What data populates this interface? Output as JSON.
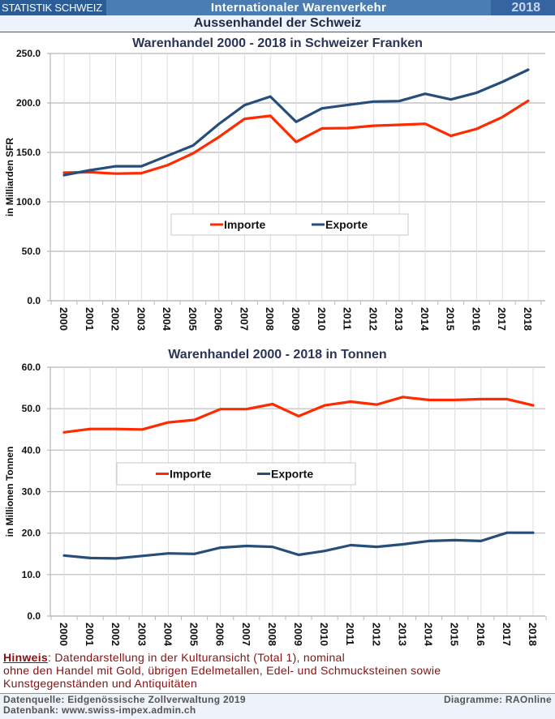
{
  "header": {
    "brand": "STATISTIK SCHWEIZ",
    "title": "Internationaler Warenverkehr",
    "year": "2018",
    "subtitle": "Aussenhandel der Schweiz"
  },
  "colors": {
    "importe": "#ff2a00",
    "exporte": "#274e7a",
    "header_bg": "#4a7db3",
    "brand_bg": "#2c5c96",
    "note_text": "#8a1010"
  },
  "chart_data": [
    {
      "type": "line",
      "title": "Warenhandel 2000 - 2018 in Schweizer Franken",
      "xlabel": "",
      "ylabel": "in Milliarden SFR",
      "ylim": [
        0,
        250
      ],
      "yticks": [
        "0.0",
        "50.0",
        "100.0",
        "150.0",
        "200.0",
        "250.0"
      ],
      "ytick_values": [
        0,
        50,
        100,
        150,
        200,
        250
      ],
      "grid": true,
      "legend_position": "center",
      "categories": [
        "2000",
        "2001",
        "2002",
        "2003",
        "2004",
        "2005",
        "2006",
        "2007",
        "2008",
        "2009",
        "2010",
        "2011",
        "2012",
        "2013",
        "2014",
        "2015",
        "2016",
        "2017",
        "2018"
      ],
      "series": [
        {
          "name": "Importe",
          "color": "#ff2a00",
          "values": [
            129.5,
            130.0,
            128.5,
            129.0,
            137.0,
            149.0,
            165.5,
            183.9,
            187.0,
            160.6,
            174.3,
            174.6,
            177.0,
            177.9,
            178.9,
            166.7,
            173.8,
            185.7,
            202.2
          ]
        },
        {
          "name": "Exporte",
          "color": "#274e7a",
          "values": [
            127.0,
            132.0,
            136.0,
            136.0,
            146.5,
            157.0,
            178.7,
            197.8,
            206.5,
            180.9,
            194.5,
            198.0,
            201.4,
            201.9,
            209.3,
            203.5,
            210.3,
            221.3,
            233.6
          ]
        }
      ]
    },
    {
      "type": "line",
      "title": "Warenhandel 2000 - 2018 in Tonnen",
      "xlabel": "",
      "ylabel": "in Millionen Tonnen",
      "ylim": [
        0,
        60
      ],
      "yticks": [
        "0.0",
        "10.0",
        "20.0",
        "30.0",
        "40.0",
        "50.0",
        "60.0"
      ],
      "ytick_values": [
        0,
        10,
        20,
        30,
        40,
        50,
        60
      ],
      "grid": true,
      "legend_position": "center",
      "categories": [
        "2000",
        "2001",
        "2002",
        "2003",
        "2004",
        "2005",
        "2006",
        "2007",
        "2008",
        "2009",
        "2010",
        "2011",
        "2012",
        "2013",
        "2014",
        "2015",
        "2016",
        "2017",
        "2018"
      ],
      "series": [
        {
          "name": "Importe",
          "color": "#ff2a00",
          "values": [
            44.3,
            45.1,
            45.1,
            45.0,
            46.7,
            47.3,
            49.9,
            49.9,
            51.1,
            48.2,
            50.8,
            51.7,
            51.0,
            52.8,
            52.1,
            52.1,
            52.3,
            52.3,
            50.8
          ]
        },
        {
          "name": "Exporte",
          "color": "#274e7a",
          "values": [
            14.6,
            14.0,
            13.9,
            14.5,
            15.1,
            15.0,
            16.5,
            16.9,
            16.7,
            14.75,
            15.7,
            17.1,
            16.7,
            17.3,
            18.1,
            18.3,
            18.1,
            20.1,
            20.1
          ]
        }
      ]
    }
  ],
  "notes": {
    "label": "Hinweis",
    "line1": ": Datendarstellung in der Kulturansicht (Total 1), nominal",
    "line2": "ohne den Handel mit Gold, übrigen Edelmetallen, Edel- und Schmucksteinen sowie",
    "line3": "Kunstgegenständen und Antiquitäten"
  },
  "footer": {
    "source": "Datenquelle: Eidgenössische Zollverwaltung 2019",
    "database": "Datenbank: www.swiss-impex.admin.ch",
    "credit": "Diagramme: RAOnline"
  }
}
